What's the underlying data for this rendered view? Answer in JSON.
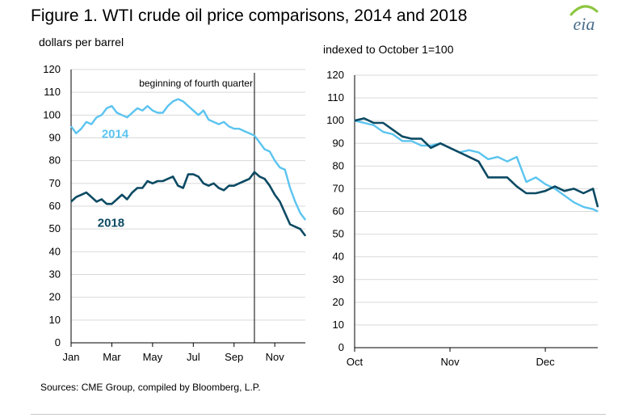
{
  "header": {
    "title": "Figure 1. WTI crude oil price comparisons, 2014 and 2018",
    "logo_text": "eia"
  },
  "footer": {
    "source": "Sources: CME Group, compiled by Bloomberg, L.P."
  },
  "colors": {
    "series_2014": "#5bc4f0",
    "series_2018": "#0c4a63",
    "grid": "#d9d9d9",
    "axis": "#000000",
    "logo_swoosh": "#8cc63f"
  },
  "chart_data": [
    {
      "type": "line",
      "title": "",
      "ylabel": "dollars per barrel",
      "xlabel": "",
      "ylim": [
        0,
        120
      ],
      "yticks": [
        0,
        10,
        20,
        30,
        40,
        50,
        60,
        70,
        80,
        90,
        100,
        110,
        120
      ],
      "xlim": [
        0,
        11.5
      ],
      "xticks": [
        {
          "label": "Jan",
          "x": 0
        },
        {
          "label": "Mar",
          "x": 2
        },
        {
          "label": "May",
          "x": 4
        },
        {
          "label": "Jul",
          "x": 6
        },
        {
          "label": "Sep",
          "x": 8
        },
        {
          "label": "Nov",
          "x": 10
        }
      ],
      "grid": "horizontal",
      "annotation": {
        "text": "beginning of fourth quarter",
        "x": 9
      },
      "series": [
        {
          "name": "2014",
          "color": "#5bc4f0",
          "x": [
            0,
            0.25,
            0.5,
            0.75,
            1,
            1.25,
            1.5,
            1.75,
            2,
            2.25,
            2.5,
            2.75,
            3,
            3.25,
            3.5,
            3.75,
            4,
            4.25,
            4.5,
            4.75,
            5,
            5.25,
            5.5,
            5.75,
            6,
            6.25,
            6.5,
            6.75,
            7,
            7.25,
            7.5,
            7.75,
            8,
            8.25,
            8.5,
            8.75,
            9,
            9.25,
            9.5,
            9.75,
            10,
            10.25,
            10.5,
            10.75,
            11,
            11.25,
            11.5
          ],
          "values": [
            95,
            92,
            94,
            97,
            96,
            99,
            100,
            103,
            104,
            101,
            100,
            99,
            101,
            103,
            102,
            104,
            102,
            101,
            101,
            104,
            106,
            107,
            106,
            104,
            102,
            100,
            102,
            98,
            97,
            96,
            97,
            95,
            94,
            94,
            93,
            92,
            91,
            88,
            85,
            84,
            80,
            77,
            76,
            68,
            62,
            57,
            54
          ]
        },
        {
          "name": "2018",
          "color": "#0c4a63",
          "x": [
            0,
            0.25,
            0.5,
            0.75,
            1,
            1.25,
            1.5,
            1.75,
            2,
            2.25,
            2.5,
            2.75,
            3,
            3.25,
            3.5,
            3.75,
            4,
            4.25,
            4.5,
            4.75,
            5,
            5.25,
            5.5,
            5.75,
            6,
            6.25,
            6.5,
            6.75,
            7,
            7.25,
            7.5,
            7.75,
            8,
            8.25,
            8.5,
            8.75,
            9,
            9.25,
            9.5,
            9.75,
            10,
            10.25,
            10.5,
            10.75,
            11,
            11.25,
            11.5
          ],
          "values": [
            62,
            64,
            65,
            66,
            64,
            62,
            63,
            61,
            61,
            63,
            65,
            63,
            66,
            68,
            68,
            71,
            70,
            71,
            71,
            72,
            73,
            69,
            68,
            74,
            74,
            73,
            70,
            69,
            70,
            68,
            67,
            69,
            69,
            70,
            71,
            72,
            75,
            73,
            72,
            69,
            65,
            62,
            57,
            52,
            51,
            50,
            47
          ]
        }
      ]
    },
    {
      "type": "line",
      "title": "",
      "ylabel": "indexed to October 1=100",
      "xlabel": "",
      "ylim": [
        0,
        120
      ],
      "yticks": [
        0,
        10,
        20,
        30,
        40,
        50,
        60,
        70,
        80,
        90,
        100,
        110,
        120
      ],
      "xlim": [
        0,
        2.55
      ],
      "xticks": [
        {
          "label": "Oct",
          "x": 0
        },
        {
          "label": "Nov",
          "x": 1
        },
        {
          "label": "Dec",
          "x": 2
        }
      ],
      "grid": "horizontal",
      "series": [
        {
          "name": "2014",
          "color": "#5bc4f0",
          "x": [
            0,
            0.1,
            0.2,
            0.3,
            0.4,
            0.5,
            0.6,
            0.7,
            0.8,
            0.9,
            1.0,
            1.1,
            1.2,
            1.3,
            1.4,
            1.5,
            1.6,
            1.7,
            1.8,
            1.9,
            2.0,
            2.1,
            2.2,
            2.3,
            2.4,
            2.5,
            2.55
          ],
          "values": [
            100,
            99,
            98,
            95,
            94,
            91,
            91,
            89,
            89,
            90,
            88,
            86,
            87,
            86,
            83,
            84,
            82,
            84,
            73,
            75,
            72,
            70,
            67,
            64,
            62,
            61,
            60
          ]
        },
        {
          "name": "2018",
          "color": "#0c4a63",
          "x": [
            0,
            0.1,
            0.2,
            0.3,
            0.4,
            0.5,
            0.6,
            0.7,
            0.8,
            0.9,
            1.0,
            1.1,
            1.2,
            1.3,
            1.4,
            1.5,
            1.6,
            1.7,
            1.8,
            1.9,
            2.0,
            2.1,
            2.2,
            2.3,
            2.4,
            2.5,
            2.55
          ],
          "values": [
            100,
            101,
            99,
            99,
            96,
            93,
            92,
            92,
            88,
            90,
            88,
            86,
            84,
            82,
            75,
            75,
            75,
            71,
            68,
            68,
            69,
            71,
            69,
            70,
            68,
            70,
            62
          ]
        }
      ]
    }
  ]
}
